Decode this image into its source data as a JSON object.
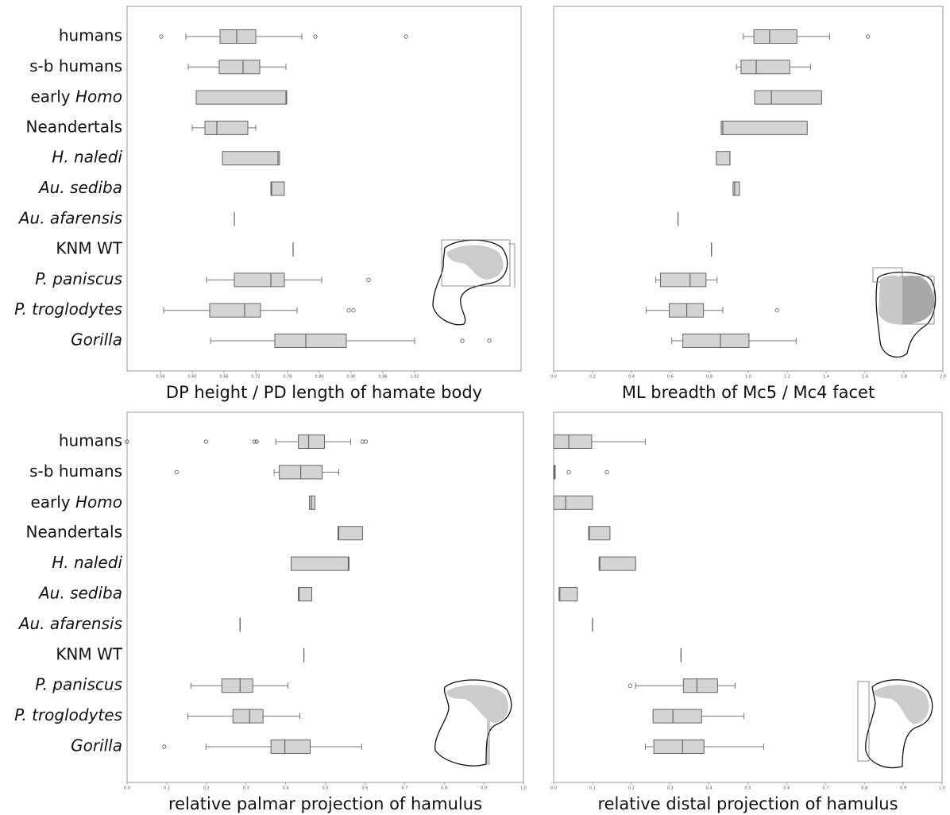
{
  "chart_data": [
    {
      "type": "box",
      "xlabel": "DP height / PD length of hamate body",
      "categories": [
        "humans",
        "s-b humans",
        "early Homo",
        "Neandertals",
        "H. naledi",
        "Au. sediba",
        "Au. afarensis",
        "KNM WT",
        "P. paniscus",
        "P. troglodytes",
        "Gorilla"
      ],
      "italic": [
        "none",
        "none",
        "last",
        "none",
        "all",
        "all",
        "all",
        "none",
        "all",
        "all",
        "all"
      ],
      "xlim": [
        0.477,
        1.221
      ],
      "xticks": [
        0.54,
        {
          "value": 0.6,
          "label": "0.60"
        },
        0.66,
        0.72,
        0.78,
        0.84,
        {
          "value": 0.9,
          "label": "0.90"
        },
        0.96,
        1.02
      ],
      "color": "#d4d4d4",
      "boxes": [
        {
          "min": 0.588,
          "q1": 0.6525,
          "median": 0.684,
          "q3": 0.72,
          "max": 0.807,
          "outliers": [
            0.5415,
            0.8325,
            1.0035
          ]
        },
        {
          "min": 0.5925,
          "q1": 0.651,
          "median": 0.696,
          "q3": 0.7275,
          "max": 0.777
        },
        {
          "min": 0.6075,
          "q1": 0.6075,
          "median": 0.777,
          "q3": 0.7785,
          "max": 0.7785
        },
        {
          "min": 0.6,
          "q1": 0.624,
          "median": 0.6465,
          "q3": 0.705,
          "max": 0.72
        },
        {
          "min": 0.657,
          "q1": 0.657,
          "median": 0.762,
          "q3": 0.765,
          "max": 0.765
        },
        {
          "min": 0.7485,
          "q1": 0.7485,
          "median": 0.75,
          "q3": 0.774,
          "max": 0.774
        },
        {
          "min": 0.6795,
          "q1": 0.6795,
          "median": 0.6795,
          "q3": 0.6795,
          "max": 0.6795
        },
        {
          "min": 0.7905,
          "q1": 0.7905,
          "median": 0.7905,
          "q3": 0.7905,
          "max": 0.7905
        },
        {
          "min": 0.627,
          "q1": 0.6795,
          "median": 0.7485,
          "q3": 0.774,
          "max": 0.8445,
          "outliers": [
            0.933
          ]
        },
        {
          "min": 0.546,
          "q1": 0.633,
          "median": 0.699,
          "q3": 0.729,
          "max": 0.798,
          "outliers": [
            0.8955,
            0.9045
          ]
        },
        {
          "min": 0.6345,
          "q1": 0.756,
          "median": 0.8145,
          "q3": 0.891,
          "max": 1.02,
          "outliers": [
            1.11,
            1.161
          ]
        }
      ]
    },
    {
      "type": "box",
      "xlabel": "ML breadth of Mc5 / Mc4 facet",
      "xlim": [
        0,
        2.0
      ],
      "xticks": [
        {
          "value": 0,
          "label": "0.0"
        },
        0.2,
        0.4,
        0.6,
        0.8,
        {
          "value": 1,
          "label": "1.0"
        },
        1.2,
        1.4,
        1.6,
        1.8,
        {
          "value": 2,
          "label": "2.0"
        }
      ],
      "color": "#d4d4d4",
      "boxes": [
        {
          "min": 0.975,
          "q1": 1.029,
          "median": 1.11,
          "q3": 1.25,
          "max": 1.418,
          "outliers": [
            1.615
          ]
        },
        {
          "min": 0.939,
          "q1": 0.963,
          "median": 1.041,
          "q3": 1.213,
          "max": 1.32
        },
        {
          "min": 1.033,
          "q1": 1.033,
          "median": 1.119,
          "q3": 1.377,
          "max": 1.377
        },
        {
          "min": 0.861,
          "q1": 0.861,
          "median": 0.869,
          "q3": 1.303,
          "max": 1.303
        },
        {
          "min": 0.836,
          "q1": 0.836,
          "median": 0.906,
          "q3": 0.906,
          "max": 0.906
        },
        {
          "min": 0.922,
          "q1": 0.922,
          "median": 0.93,
          "q3": 0.955,
          "max": 0.955
        },
        {
          "min": 0.639,
          "q1": 0.639,
          "median": 0.639,
          "q3": 0.639,
          "max": 0.639
        },
        {
          "min": 0.811,
          "q1": 0.811,
          "median": 0.811,
          "q3": 0.811,
          "max": 0.811
        },
        {
          "min": 0.525,
          "q1": 0.549,
          "median": 0.701,
          "q3": 0.783,
          "max": 0.84
        },
        {
          "min": 0.475,
          "q1": 0.594,
          "median": 0.684,
          "q3": 0.77,
          "max": 0.869,
          "outliers": [
            1.148
          ]
        },
        {
          "min": 0.607,
          "q1": 0.664,
          "median": 0.857,
          "q3": 1.004,
          "max": 1.246
        }
      ]
    },
    {
      "type": "box",
      "xlabel": "relative palmar projection of hamulus",
      "categories": [
        "humans",
        "s-b humans",
        "early Homo",
        "Neandertals",
        "H. naledi",
        "Au. sediba",
        "Au. afarensis",
        "KNM WT",
        "P. paniscus",
        "P. troglodytes",
        "Gorilla"
      ],
      "italic": [
        "none",
        "none",
        "last",
        "none",
        "all",
        "all",
        "all",
        "none",
        "all",
        "all",
        "all"
      ],
      "xlim": [
        0,
        1
      ],
      "xticks": [
        {
          "value": 0,
          "label": "0.0"
        },
        0.1,
        0.2,
        0.3,
        0.4,
        0.5,
        0.6,
        0.7,
        0.8,
        0.9,
        {
          "value": 1,
          "label": "1.0"
        }
      ],
      "color": "#d4d4d4",
      "boxes": [
        {
          "min": 0.375,
          "q1": 0.432,
          "median": 0.458,
          "q3": 0.498,
          "max": 0.564,
          "outliers": [
            0,
            0.199,
            0.321,
            0.327,
            0.594,
            0.602
          ]
        },
        {
          "min": 0.371,
          "q1": 0.384,
          "median": 0.438,
          "q3": 0.492,
          "max": 0.534,
          "outliers": [
            0.125
          ]
        },
        {
          "min": 0.46,
          "q1": 0.46,
          "median": 0.465,
          "q3": 0.474,
          "max": 0.474
        },
        {
          "min": 0.532,
          "q1": 0.532,
          "median": 0.534,
          "q3": 0.594,
          "max": 0.594
        },
        {
          "min": 0.414,
          "q1": 0.414,
          "median": 0.558,
          "q3": 0.56,
          "max": 0.56
        },
        {
          "min": 0.432,
          "q1": 0.432,
          "median": 0.434,
          "q3": 0.466,
          "max": 0.466
        },
        {
          "min": 0.285,
          "q1": 0.285,
          "median": 0.285,
          "q3": 0.285,
          "max": 0.285
        },
        {
          "min": 0.446,
          "q1": 0.446,
          "median": 0.446,
          "q3": 0.446,
          "max": 0.446
        },
        {
          "min": 0.161,
          "q1": 0.239,
          "median": 0.285,
          "q3": 0.317,
          "max": 0.406
        },
        {
          "min": 0.153,
          "q1": 0.267,
          "median": 0.309,
          "q3": 0.343,
          "max": 0.436
        },
        {
          "min": 0.199,
          "q1": 0.363,
          "median": 0.398,
          "q3": 0.462,
          "max": 0.592,
          "outliers": [
            0.094
          ]
        }
      ]
    },
    {
      "type": "box",
      "xlabel": "relative distal projection of hamulus",
      "xlim": [
        0,
        1
      ],
      "xticks": [
        {
          "value": 0,
          "label": "0.0"
        },
        0.1,
        0.2,
        0.3,
        0.4,
        0.5,
        0.6,
        0.7,
        0.8,
        0.9,
        {
          "value": 1,
          "label": "1.0"
        }
      ],
      "color": "#d4d4d4",
      "boxes": [
        {
          "min": 0,
          "q1": 0,
          "median": 0.039,
          "q3": 0.098,
          "max": 0.236
        },
        {
          "min": 0,
          "q1": 0,
          "median": 0.002,
          "q3": 0.004,
          "max": 0.004,
          "outliers": [
            0.039,
            0.137
          ]
        },
        {
          "min": 0,
          "q1": 0,
          "median": 0.031,
          "q3": 0.1,
          "max": 0.1
        },
        {
          "min": 0.09,
          "q1": 0.09,
          "median": 0.092,
          "q3": 0.145,
          "max": 0.145
        },
        {
          "min": 0.117,
          "q1": 0.117,
          "median": 0.119,
          "q3": 0.211,
          "max": 0.211
        },
        {
          "min": 0.014,
          "q1": 0.014,
          "median": 0.016,
          "q3": 0.061,
          "max": 0.061
        },
        {
          "min": 0.1,
          "q1": 0.1,
          "median": 0.1,
          "q3": 0.1,
          "max": 0.1
        },
        {
          "min": 0.328,
          "q1": 0.328,
          "median": 0.328,
          "q3": 0.328,
          "max": 0.328
        },
        {
          "min": 0.211,
          "q1": 0.334,
          "median": 0.369,
          "q3": 0.422,
          "max": 0.467,
          "outliers": [
            0.197
          ]
        },
        {
          "min": 0.256,
          "q1": 0.256,
          "median": 0.307,
          "q3": 0.381,
          "max": 0.49
        },
        {
          "min": 0.236,
          "q1": 0.258,
          "median": 0.332,
          "q3": 0.387,
          "max": 0.541
        }
      ]
    }
  ]
}
